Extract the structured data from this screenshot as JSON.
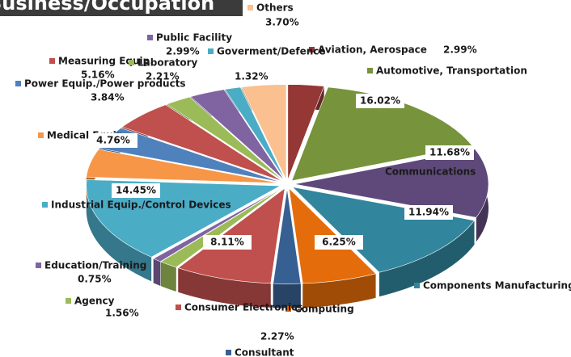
{
  "chart_data": {
    "type": "pie3d",
    "title": "Business/Occupation",
    "categories": [
      "Aviation, Aerospace",
      "Automotive, Transportation",
      "Communications",
      "Components Manufacturing",
      "Computing",
      "Consultant",
      "Consumer Electronics",
      "Agency",
      "Education/Training",
      "Industrial Equip./Control Devices",
      "Medical Equip.",
      "Power Equip./Power products",
      "Measuring Equip.",
      "Laboratory",
      "Public Facility",
      "Goverment/Defence",
      "Others"
    ],
    "values": [
      2.99,
      16.02,
      11.68,
      11.94,
      6.25,
      2.27,
      8.11,
      1.56,
      0.75,
      14.45,
      4.76,
      3.84,
      5.16,
      2.21,
      2.99,
      1.32,
      3.7
    ],
    "value_labels": [
      "2.99%",
      "16.02%",
      "11.68%",
      "11.94%",
      "6.25%",
      "2.27%",
      "8.11%",
      "1.56%",
      "0.75%",
      "14.45%",
      "4.76%",
      "3.84%",
      "5.16%",
      "2.21%",
      "2.99%",
      "1.32%",
      "3.70%"
    ],
    "colors": [
      "#953735",
      "#77933c",
      "#5f497a",
      "#31859c",
      "#e46c0a",
      "#376092",
      "#c0504d",
      "#9bbb59",
      "#8064a2",
      "#4bacc6",
      "#f79646",
      "#4f81bd",
      "#c0504d",
      "#9bbb59",
      "#8064a2",
      "#4bacc6",
      "#fac090"
    ]
  }
}
